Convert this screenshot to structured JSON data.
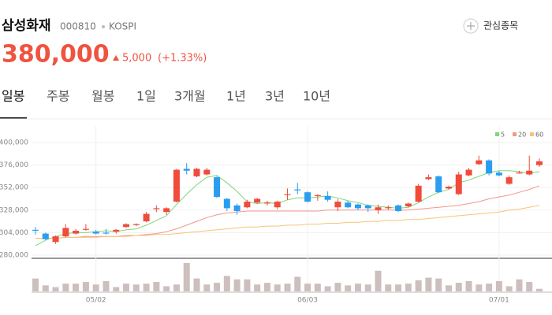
{
  "header": {
    "name": "삼성화재",
    "code": "000810",
    "market": "KOSPI",
    "watch_button": "관심종목",
    "price": "380,000",
    "change": "5,000",
    "change_pct": "(+1.33%)"
  },
  "tabs": [
    "일봉",
    "주봉",
    "월봉",
    "1일",
    "3개월",
    "1년",
    "3년",
    "10년"
  ],
  "chart_data": {
    "type": "candlestick",
    "categories": [
      null,
      null,
      null,
      null,
      null,
      null,
      "05/02",
      null,
      null,
      null,
      null,
      null,
      null,
      null,
      null,
      null,
      null,
      null,
      null,
      null,
      null,
      null,
      null,
      null,
      null,
      null,
      null,
      "06/03",
      null,
      null,
      null,
      null,
      null,
      null,
      null,
      null,
      null,
      null,
      null,
      null,
      null,
      null,
      null,
      null,
      null,
      null,
      "07/01",
      null,
      null,
      null,
      null
    ],
    "open": [
      307000,
      303000,
      294000,
      300000,
      303000,
      307000,
      305000,
      304000,
      305000,
      310000,
      312000,
      316000,
      329000,
      326000,
      337000,
      372000,
      364000,
      366000,
      363000,
      340000,
      333000,
      331000,
      336000,
      335000,
      331000,
      344000,
      350000,
      347000,
      343000,
      343000,
      331000,
      336000,
      334000,
      333000,
      328000,
      330000,
      333000,
      332000,
      337000,
      361000,
      364000,
      351000,
      345000,
      365000,
      377000,
      381000,
      368000,
      356000,
      367000,
      366000,
      376000
    ],
    "high": [
      310000,
      304000,
      301000,
      313000,
      308000,
      313000,
      307000,
      308000,
      308000,
      314000,
      314000,
      326000,
      333000,
      331000,
      372000,
      378000,
      373000,
      373000,
      364000,
      341000,
      335000,
      339000,
      341000,
      338000,
      338000,
      351000,
      357000,
      348000,
      345000,
      348000,
      340000,
      338000,
      335000,
      334000,
      334000,
      333000,
      334000,
      336000,
      356000,
      366000,
      365000,
      354000,
      369000,
      373000,
      386000,
      382000,
      370000,
      365000,
      370000,
      386000,
      383000
    ],
    "low": [
      302000,
      296000,
      292000,
      299000,
      302000,
      306000,
      302000,
      302000,
      303000,
      309000,
      311000,
      315000,
      326000,
      323000,
      336000,
      366000,
      363000,
      365000,
      341000,
      327000,
      323000,
      330000,
      335000,
      333000,
      329000,
      339000,
      345000,
      336000,
      338000,
      337000,
      327000,
      330000,
      328000,
      326000,
      324000,
      328000,
      326000,
      331000,
      336000,
      360000,
      346000,
      350000,
      344000,
      364000,
      376000,
      365000,
      364000,
      355000,
      367000,
      365000,
      374000
    ],
    "close": [
      306000,
      297000,
      300000,
      309000,
      306000,
      308000,
      303000,
      303000,
      307000,
      313000,
      313000,
      324000,
      330000,
      330000,
      371000,
      370000,
      372000,
      371000,
      342000,
      330000,
      327000,
      337000,
      340000,
      336000,
      337000,
      345000,
      349000,
      337000,
      344000,
      339000,
      337000,
      331000,
      330000,
      330000,
      331000,
      331000,
      327000,
      335000,
      354000,
      363000,
      347000,
      353000,
      366000,
      371000,
      381000,
      367000,
      365000,
      363000,
      368000,
      370000,
      380000
    ],
    "volume": [
      75000,
      35000,
      25000,
      45000,
      45000,
      55000,
      40000,
      60000,
      25000,
      45000,
      40000,
      45000,
      55000,
      30000,
      40000,
      165000,
      75000,
      40000,
      50000,
      90000,
      70000,
      70000,
      40000,
      50000,
      40000,
      45000,
      85000,
      45000,
      45000,
      30000,
      50000,
      35000,
      45000,
      40000,
      120000,
      40000,
      40000,
      45000,
      65000,
      80000,
      75000,
      35000,
      50000,
      60000,
      40000,
      45000,
      60000,
      30000,
      70000,
      55000,
      15000
    ],
    "series": [
      {
        "name": "5",
        "color": "#7ed67a",
        "values": [
          290000,
          296000,
          300000,
          303000,
          304000,
          304000,
          305000,
          306000,
          305000,
          307000,
          308000,
          312000,
          317000,
          322000,
          334000,
          345000,
          355000,
          363000,
          365000,
          357000,
          348000,
          337000,
          335000,
          336000,
          335000,
          339000,
          341000,
          341000,
          342000,
          343000,
          341000,
          338000,
          336000,
          333000,
          332000,
          331000,
          330000,
          331000,
          336000,
          342000,
          347000,
          350000,
          357000,
          360000,
          364000,
          368000,
          370000,
          370000,
          369000,
          367000,
          369000
        ]
      },
      {
        "name": "20",
        "color": "#f2978b",
        "values": [
          298000,
          298000,
          298000,
          299000,
          299000,
          300000,
          300000,
          300000,
          300000,
          301000,
          301000,
          302000,
          303000,
          305000,
          308000,
          312000,
          316000,
          320000,
          323000,
          325000,
          326000,
          327000,
          327000,
          327000,
          327000,
          327000,
          327000,
          327000,
          327000,
          328000,
          328000,
          328000,
          328000,
          328000,
          328000,
          328000,
          328000,
          328000,
          329000,
          330000,
          331000,
          332000,
          333000,
          335000,
          337000,
          340000,
          342000,
          344000,
          347000,
          350000,
          354000
        ]
      },
      {
        "name": "60",
        "color": "#f6c478",
        "values": [
          298000,
          298000,
          298000,
          299000,
          299000,
          299000,
          299000,
          300000,
          300000,
          300000,
          301000,
          301000,
          302000,
          302000,
          303000,
          304000,
          305000,
          306000,
          307000,
          308000,
          309000,
          310000,
          310000,
          311000,
          311000,
          312000,
          312000,
          313000,
          313000,
          314000,
          314000,
          315000,
          315000,
          316000,
          316000,
          317000,
          317000,
          318000,
          318000,
          319000,
          320000,
          321000,
          322000,
          323000,
          324000,
          325000,
          326000,
          328000,
          329000,
          331000,
          333000
        ]
      }
    ],
    "ylim": [
      280000,
      400000
    ],
    "yticks": [
      {
        "value": 280000,
        "label": "280,000"
      },
      {
        "value": 304000,
        "label": "304,000"
      },
      {
        "value": 328000,
        "label": "328,000"
      },
      {
        "value": 352000,
        "label": "352,000"
      },
      {
        "value": 376000,
        "label": "376,000"
      },
      {
        "value": 400000,
        "label": "400,000"
      }
    ],
    "up_color": "#f04b3b",
    "down_color": "#2a9df0",
    "volume_color": "#cdbfbd",
    "grid": true
  }
}
